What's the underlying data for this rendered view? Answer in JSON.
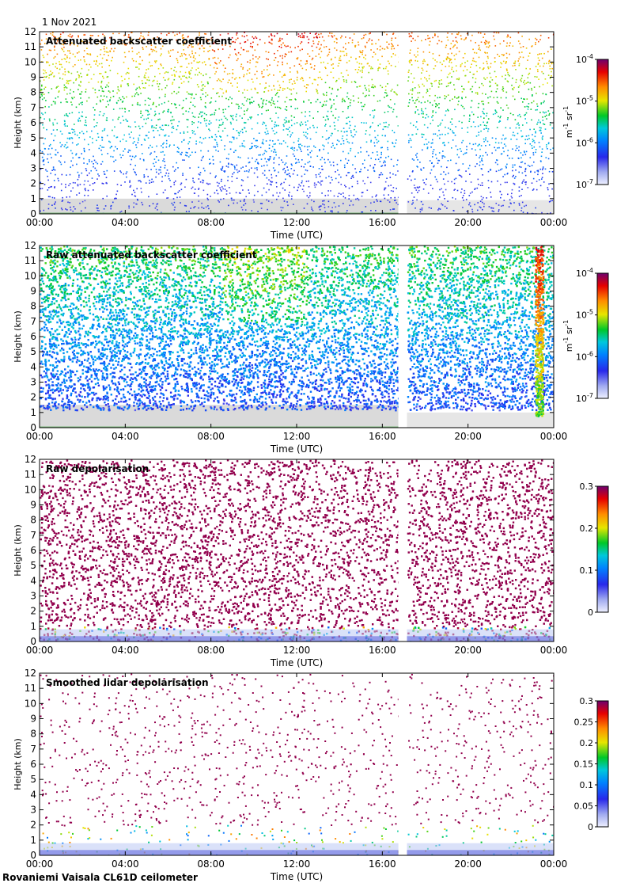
{
  "header": {
    "date": "1 Nov 2021"
  },
  "footer": {
    "caption": "Rovaniemi Vaisala CL61D ceilometer"
  },
  "chart_data": [
    {
      "type": "heatmap",
      "title": "Attenuated backscatter coefficient",
      "xlabel": "Time (UTC)",
      "ylabel": "Height (km)",
      "xticks": [
        "00:00",
        "04:00",
        "08:00",
        "12:00",
        "16:00",
        "20:00",
        "00:00"
      ],
      "xlim_hours": [
        0,
        24
      ],
      "ylim": [
        0,
        12
      ],
      "yticks": [
        0,
        1,
        2,
        3,
        4,
        5,
        6,
        7,
        8,
        9,
        10,
        11,
        12
      ],
      "data_gap_hours": [
        16.75,
        17.15
      ],
      "colorbar": {
        "scale": "log",
        "range": [
          1e-07,
          0.0001
        ],
        "ticks": [
          {
            "mantissa": "10",
            "exponent": "-7"
          },
          {
            "mantissa": "10",
            "exponent": "-6"
          },
          {
            "mantissa": "10",
            "exponent": "-5"
          },
          {
            "mantissa": "10",
            "exponent": "-4"
          }
        ],
        "unit_label": "m",
        "unit_exp1": "-1",
        "unit_mid": " sr",
        "unit_exp2": "-1"
      }
    },
    {
      "type": "heatmap",
      "title": "Raw attenuated backscatter coefficient",
      "xlabel": "Time (UTC)",
      "ylabel": "Height (km)",
      "xticks": [
        "00:00",
        "04:00",
        "08:00",
        "12:00",
        "16:00",
        "20:00",
        "00:00"
      ],
      "xlim_hours": [
        0,
        24
      ],
      "ylim": [
        0,
        12
      ],
      "yticks": [
        0,
        1,
        2,
        3,
        4,
        5,
        6,
        7,
        8,
        9,
        10,
        11,
        12
      ],
      "data_gap_hours": [
        16.75,
        17.15
      ],
      "colorbar": {
        "scale": "log",
        "range": [
          1e-07,
          0.0001
        ],
        "ticks": [
          {
            "mantissa": "10",
            "exponent": "-7"
          },
          {
            "mantissa": "10",
            "exponent": "-6"
          },
          {
            "mantissa": "10",
            "exponent": "-5"
          },
          {
            "mantissa": "10",
            "exponent": "-4"
          }
        ],
        "unit_label": "m",
        "unit_exp1": "-1",
        "unit_mid": " sr",
        "unit_exp2": "-1"
      }
    },
    {
      "type": "heatmap",
      "title": "Raw depolarisation",
      "xlabel": "Time (UTC)",
      "ylabel": "Height (km)",
      "xticks": [
        "00:00",
        "04:00",
        "08:00",
        "12:00",
        "16:00",
        "20:00",
        "00:00"
      ],
      "xlim_hours": [
        0,
        24
      ],
      "ylim": [
        0,
        12
      ],
      "yticks": [
        0,
        1,
        2,
        3,
        4,
        5,
        6,
        7,
        8,
        9,
        10,
        11,
        12
      ],
      "data_gap_hours": [
        16.75,
        17.15
      ],
      "colorbar": {
        "scale": "linear",
        "range": [
          0,
          0.3
        ],
        "ticks": [
          "0",
          "0.1",
          "0.2",
          "0.3"
        ]
      }
    },
    {
      "type": "heatmap",
      "title": "Smoothed lidar depolarisation",
      "xlabel": "Time (UTC)",
      "ylabel": "Height (km)",
      "xticks": [
        "00:00",
        "04:00",
        "08:00",
        "12:00",
        "16:00",
        "20:00",
        "00:00"
      ],
      "xlim_hours": [
        0,
        24
      ],
      "ylim": [
        0,
        12
      ],
      "yticks": [
        0,
        1,
        2,
        3,
        4,
        5,
        6,
        7,
        8,
        9,
        10,
        11,
        12
      ],
      "data_gap_hours": [
        16.75,
        17.15
      ],
      "colorbar": {
        "scale": "linear",
        "range": [
          0,
          0.3
        ],
        "ticks": [
          "0",
          "0.05",
          "0.1",
          "0.15",
          "0.2",
          "0.25",
          "0.3"
        ]
      }
    }
  ]
}
